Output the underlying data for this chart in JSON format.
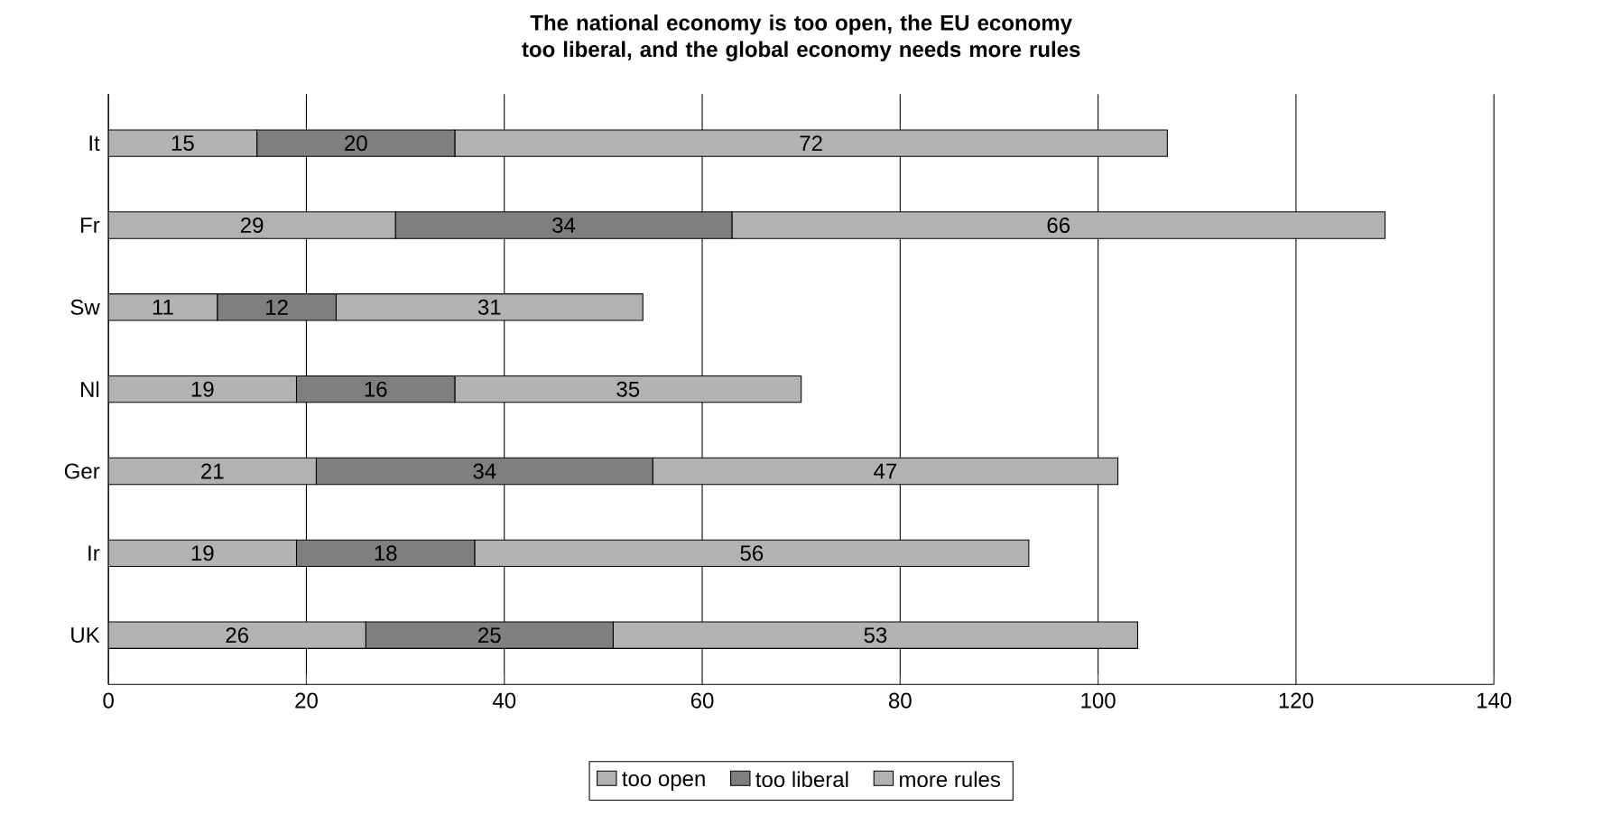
{
  "chart_data": {
    "type": "bar",
    "orientation": "horizontal",
    "stacked": true,
    "title": "The national economy is too open, the EU economy too liberal, and the global economy needs more rules",
    "categories": [
      "It",
      "Fr",
      "Sw",
      "Nl",
      "Ger",
      "Ir",
      "UK"
    ],
    "series": [
      {
        "name": "too open",
        "color": "#b2b2b2",
        "values": [
          15,
          29,
          11,
          19,
          21,
          19,
          26
        ]
      },
      {
        "name": "too liberal",
        "color": "#7f7f7f",
        "values": [
          20,
          34,
          12,
          16,
          34,
          18,
          25
        ]
      },
      {
        "name": "more rules",
        "color": "#b2b2b2",
        "values": [
          72,
          66,
          31,
          35,
          47,
          56,
          53
        ]
      }
    ],
    "xlim": [
      0,
      140
    ],
    "xticks": [
      0,
      20,
      40,
      60,
      80,
      100,
      120,
      140
    ],
    "grid": "x",
    "legend": "bottom",
    "data_labels": true
  }
}
